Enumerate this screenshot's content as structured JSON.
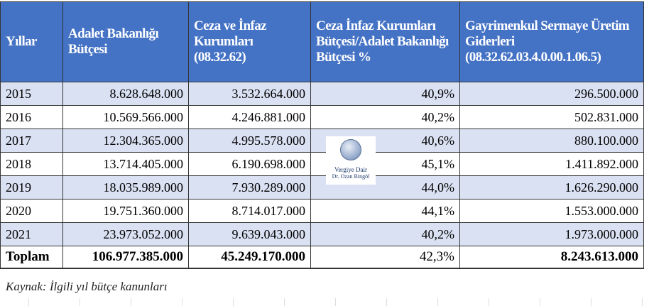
{
  "table": {
    "headers": [
      "Yıllar",
      "Adalet Bakanlığı Bütçesi",
      "Ceza ve İnfaz Kurumları (08.32.62)",
      "Ceza İnfaz Kurumları Bütçesi/Adalet Bakanlığı Bütçesi %",
      "Gayrimenkul Sermaye Üretim Giderleri (08.32.62.03.4.0.00.1.06.5)"
    ],
    "rows": [
      [
        "2015",
        "8.628.648.000",
        "3.532.664.000",
        "40,9%",
        "296.500.000"
      ],
      [
        "2016",
        "10.569.566.000",
        "4.246.881.000",
        "40,2%",
        "502.831.000"
      ],
      [
        "2017",
        "12.304.365.000",
        "4.995.578.000",
        "40,6%",
        "880.100.000"
      ],
      [
        "2018",
        "13.714.405.000",
        "6.190.698.000",
        "45,1%",
        "1.411.892.000"
      ],
      [
        "2019",
        "18.035.989.000",
        "7.930.289.000",
        "44,0%",
        "1.626.290.000"
      ],
      [
        "2020",
        "19.751.360.000",
        "8.714.017.000",
        "44,1%",
        "1.553.000.000"
      ],
      [
        "2021",
        "23.973.052.000",
        "9.639.043.000",
        "40,2%",
        "1.973.000.000"
      ]
    ],
    "total": [
      "Toplam",
      "106.977.385.000",
      "45.249.170.000",
      "42,3%",
      "8.243.613.000"
    ]
  },
  "caption": "Kaynak: İlgili yıl bütçe kanunları",
  "watermark": {
    "line1": "Vergiye Dair",
    "line2": "Dr. Ozan Bingöl"
  },
  "colors": {
    "header_bg": "#4472C4",
    "stripe": "#D9E1F2"
  }
}
